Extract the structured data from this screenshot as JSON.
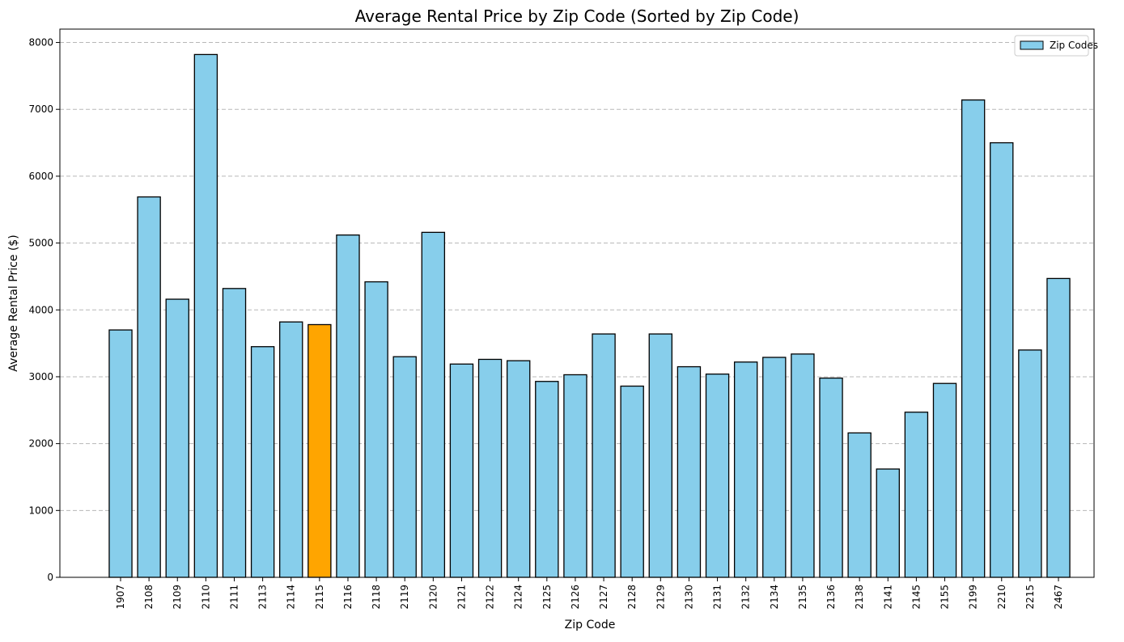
{
  "chart_data": {
    "type": "bar",
    "title": "Average Rental Price by Zip Code (Sorted by Zip Code)",
    "xlabel": "Zip Code",
    "ylabel": "Average Rental Price ($)",
    "ylim": [
      0,
      8200
    ],
    "yticks": [
      0,
      1000,
      2000,
      3000,
      4000,
      5000,
      6000,
      7000,
      8000
    ],
    "grid": "y-dashed",
    "legend": {
      "placement": "top-right",
      "entries": [
        "Zip Codes"
      ]
    },
    "categories": [
      "1907",
      "2108",
      "2109",
      "2110",
      "2111",
      "2113",
      "2114",
      "2115",
      "2116",
      "2118",
      "2119",
      "2120",
      "2121",
      "2122",
      "2124",
      "2125",
      "2126",
      "2127",
      "2128",
      "2129",
      "2130",
      "2131",
      "2132",
      "2134",
      "2135",
      "2136",
      "2138",
      "2141",
      "2145",
      "2155",
      "2199",
      "2210",
      "2215",
      "2467"
    ],
    "values": [
      3700,
      5690,
      4160,
      7820,
      4320,
      3450,
      3820,
      3780,
      5120,
      4420,
      3300,
      5160,
      3190,
      3260,
      3240,
      2930,
      3030,
      3640,
      2860,
      3640,
      3150,
      3040,
      3220,
      3290,
      3340,
      2980,
      2160,
      1620,
      2470,
      2900,
      7140,
      6500,
      3400,
      4470
    ],
    "highlight": {
      "category": "2115",
      "color": "#ffa500"
    },
    "bar_color": "#87ceeb",
    "edge_color": "#000000"
  }
}
